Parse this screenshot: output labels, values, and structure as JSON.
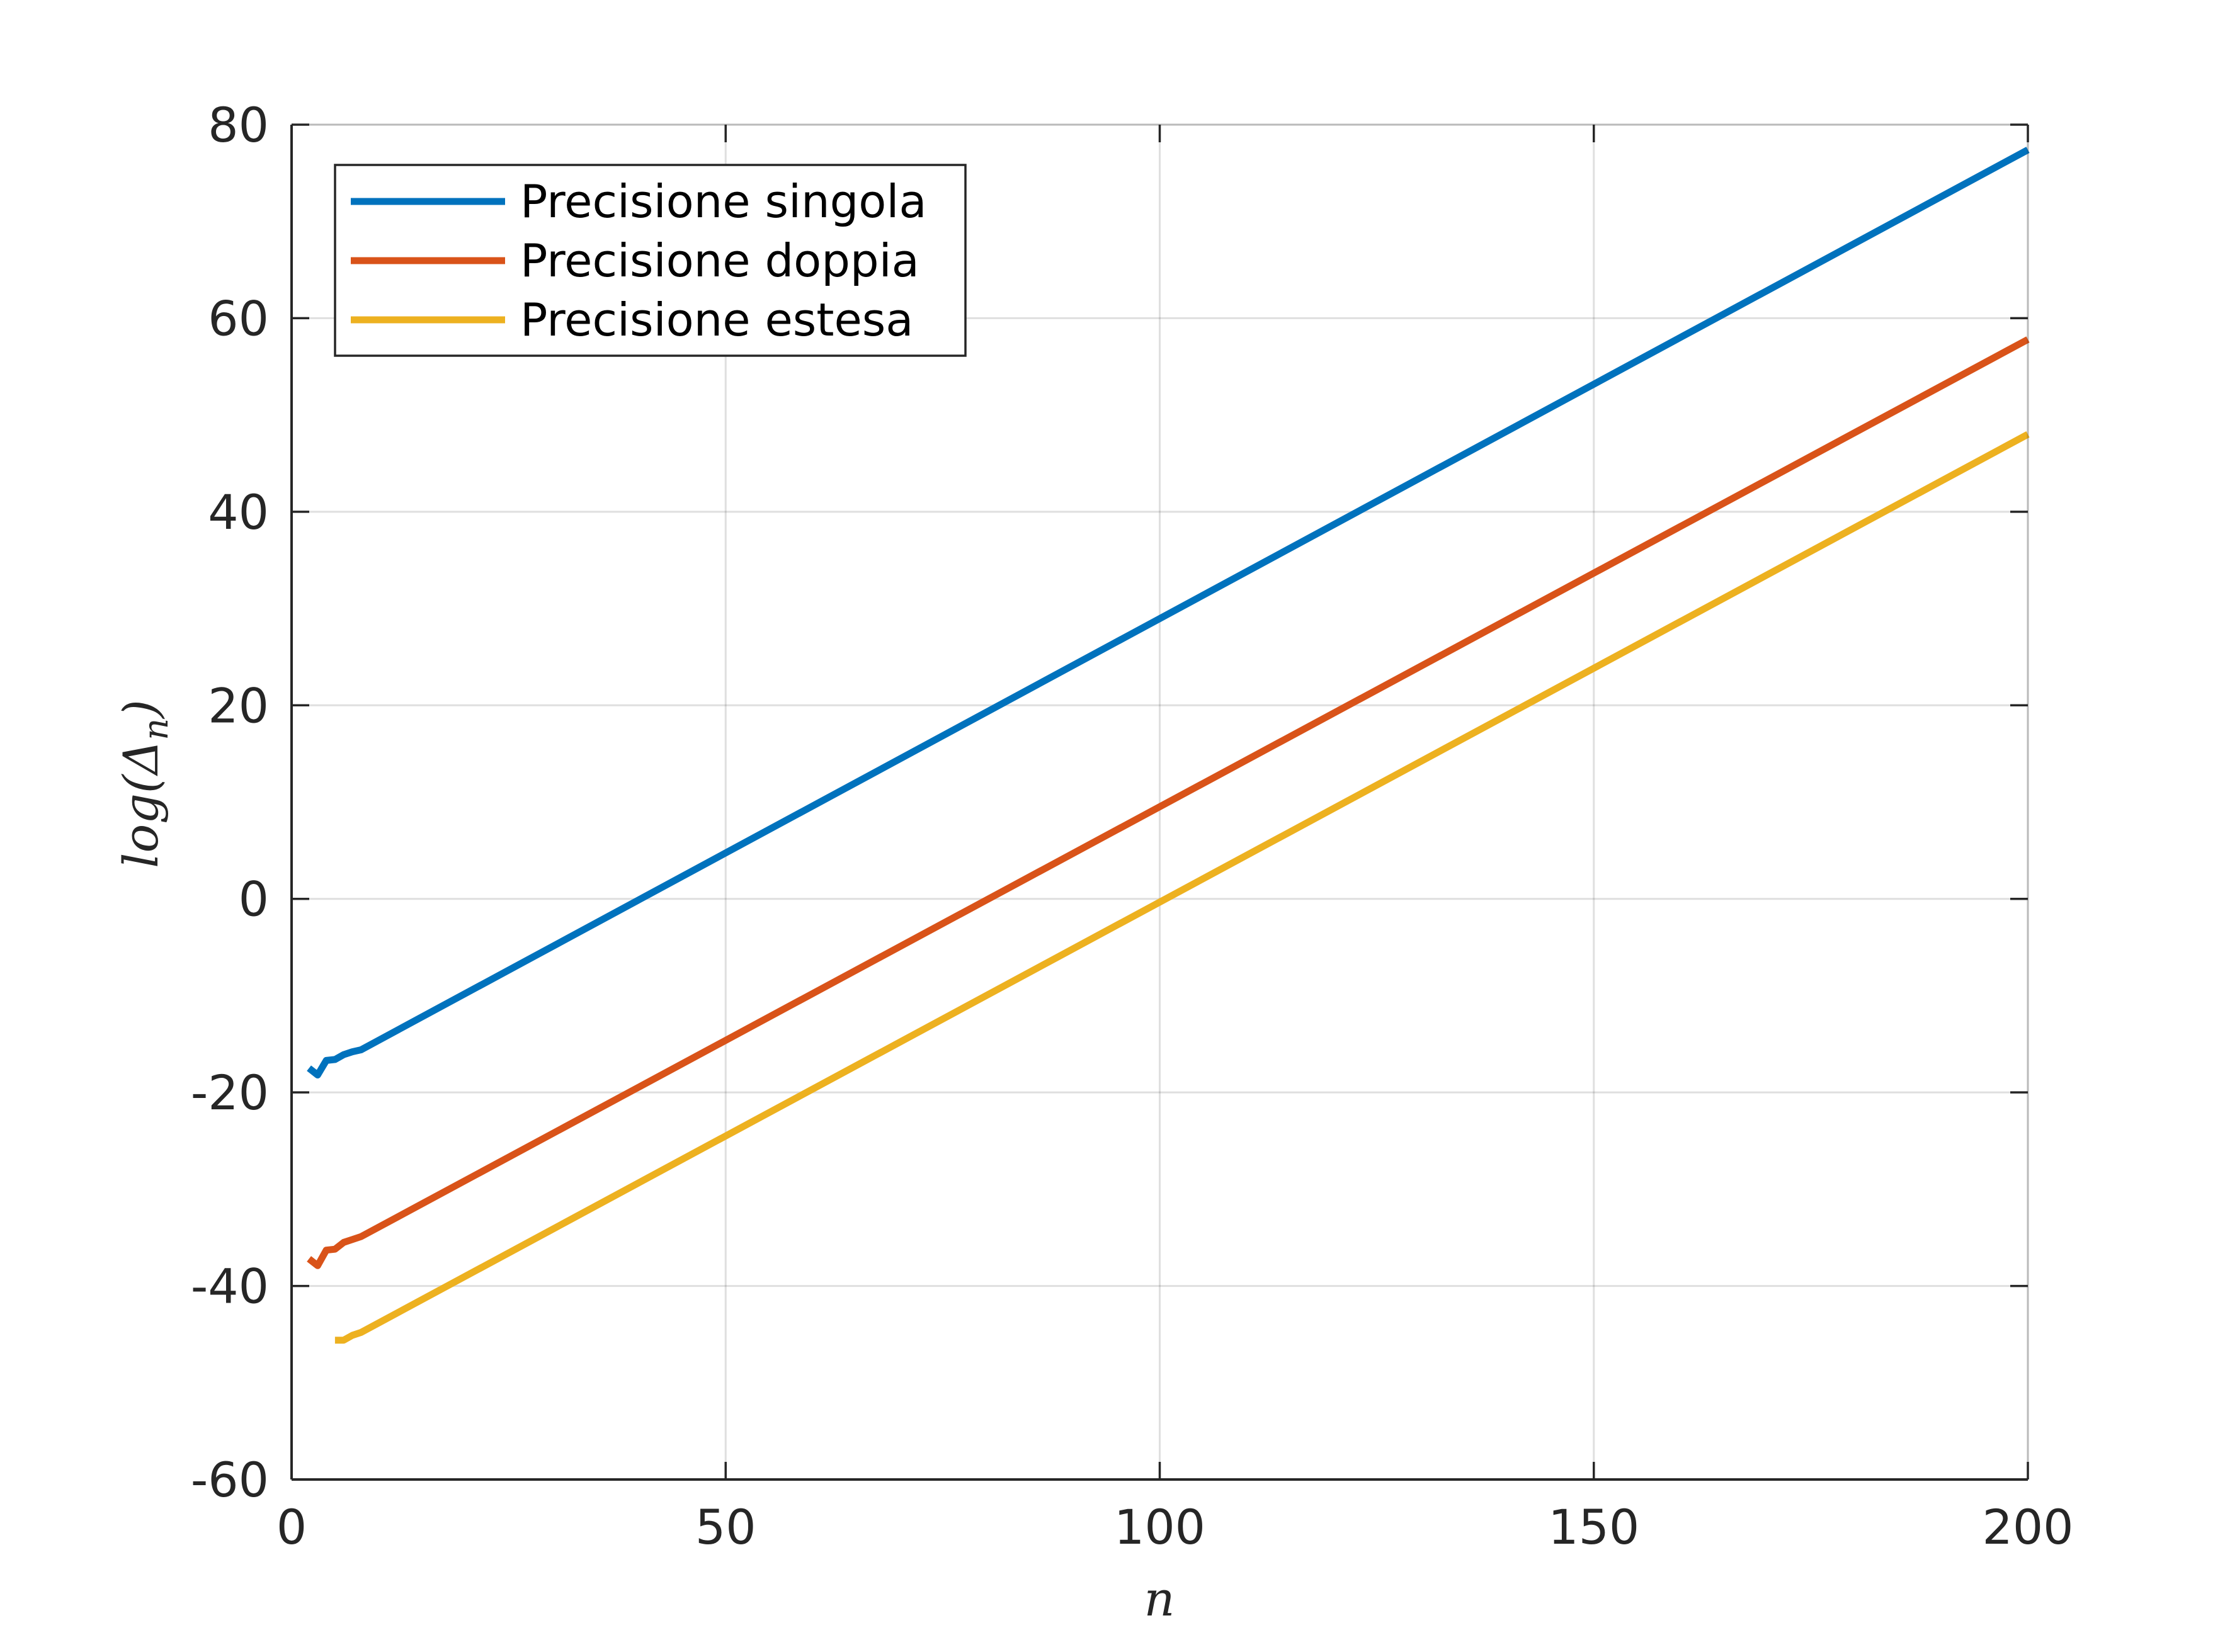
{
  "chart_data": {
    "type": "line",
    "xlabel": "n",
    "ylabel": "log(Δ_n)",
    "ylabel_main": "log(Δ",
    "ylabel_sub": "n",
    "ylabel_close": ")",
    "xlim": [
      0,
      200
    ],
    "ylim": [
      -60,
      80
    ],
    "xticks": [
      0,
      50,
      100,
      150,
      200
    ],
    "yticks": [
      -60,
      -40,
      -20,
      0,
      20,
      40,
      60,
      80
    ],
    "xtick_labels": [
      "0",
      "50",
      "100",
      "150",
      "200"
    ],
    "ytick_labels": [
      "-60",
      "-40",
      "-20",
      "0",
      "20",
      "40",
      "60",
      "80"
    ],
    "grid": true,
    "legend_position": "top-left",
    "series": [
      {
        "name": "Precisione singola",
        "color": "#0072BD",
        "x": [
          2,
          3,
          4,
          5,
          6,
          7,
          8,
          200
        ],
        "y": [
          -17.5,
          -18.2,
          -16.7,
          -16.6,
          -16.1,
          -15.8,
          -15.6,
          77.4
        ]
      },
      {
        "name": "Precisione doppia",
        "color": "#D95319",
        "x": [
          2,
          3,
          4,
          5,
          6,
          7,
          8,
          200
        ],
        "y": [
          -37.2,
          -37.9,
          -36.3,
          -36.2,
          -35.5,
          -35.2,
          -34.9,
          57.8
        ]
      },
      {
        "name": "Precisione estesa",
        "color": "#EDB120",
        "x": [
          5,
          6,
          7,
          8,
          200
        ],
        "y": [
          -45.6,
          -45.6,
          -45.1,
          -44.8,
          48.0
        ]
      }
    ]
  }
}
